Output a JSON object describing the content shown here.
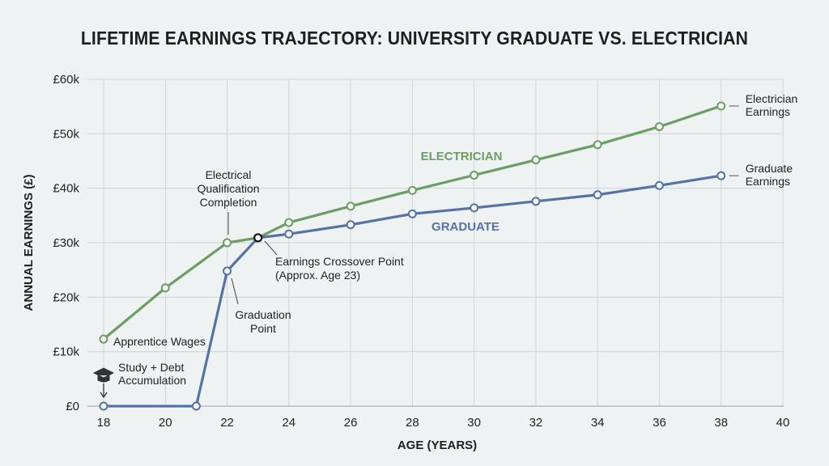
{
  "chart_data": {
    "type": "line",
    "title": "LIFETIME EARNINGS TRAJECTORY: UNIVERSITY GRADUATE VS. ELECTRICIAN",
    "xlabel": "AGE (YEARS)",
    "ylabel": "ANNUAL EARNINGS (£)",
    "xlim": [
      18,
      40
    ],
    "ylim": [
      0,
      60000
    ],
    "x_ticks": [
      18,
      20,
      22,
      24,
      26,
      28,
      30,
      32,
      34,
      36,
      38,
      40
    ],
    "y_ticks": [
      0,
      10000,
      20000,
      30000,
      40000,
      50000,
      60000
    ],
    "y_tick_labels": [
      "£0",
      "£10k",
      "£20k",
      "£30k",
      "£40k",
      "£50k",
      "£60k"
    ],
    "grid": true,
    "series": [
      {
        "name": "ELECTRICIAN",
        "end_label": "Electrician Earnings",
        "color": "#6b9e63",
        "x": [
          18,
          20,
          22,
          23,
          24,
          26,
          28,
          30,
          32,
          34,
          36,
          38
        ],
        "y": [
          12300,
          21700,
          30000,
          30900,
          33700,
          36700,
          39600,
          42400,
          45200,
          48000,
          51300,
          55100
        ]
      },
      {
        "name": "GRADUATE",
        "end_label": "Graduate Earnings",
        "color": "#5673a8",
        "x": [
          18,
          21,
          22,
          23,
          24,
          26,
          28,
          30,
          32,
          34,
          36,
          38
        ],
        "y": [
          0,
          0,
          24800,
          30900,
          31600,
          33300,
          35300,
          36400,
          37600,
          38800,
          40500,
          42300
        ]
      }
    ],
    "annotations": [
      {
        "text": [
          "Electrical",
          "Qualification",
          "Completion"
        ],
        "x": 22,
        "y": 30000
      },
      {
        "text": [
          "Earnings Crossover Point",
          "(Approx. Age 23)"
        ],
        "x": 23,
        "y": 30900
      },
      {
        "text": [
          "Graduation",
          "Point"
        ],
        "x": 22,
        "y": 24800
      },
      {
        "text": [
          "Apprentice Wages"
        ],
        "x": 18,
        "y": 12300
      },
      {
        "text": [
          "Study + Debt",
          "Accumulation"
        ],
        "x": 18,
        "y": 0,
        "icon": "graduation-cap-icon"
      }
    ]
  }
}
